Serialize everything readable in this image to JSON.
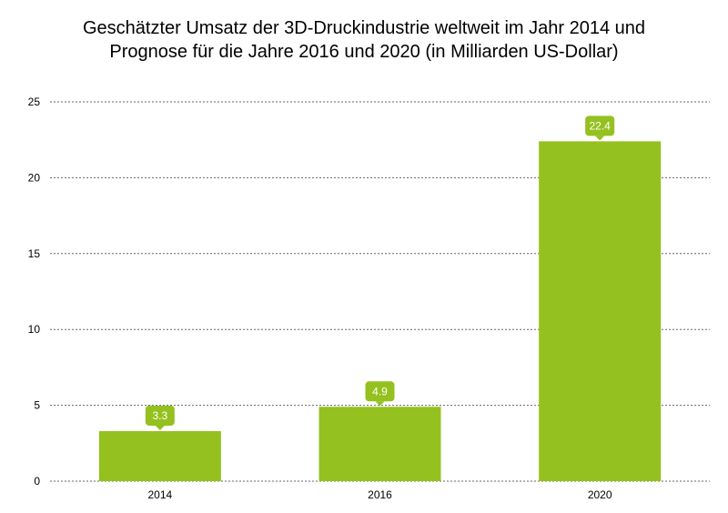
{
  "chart_data": {
    "type": "bar",
    "title_line1": "Geschätzter Umsatz der 3D-Druckindustrie weltweit im Jahr 2014 und",
    "title_line2": "Prognose für die Jahre 2016 und 2020 (in Milliarden US-Dollar)",
    "categories": [
      "2014",
      "2016",
      "2020"
    ],
    "values": [
      3.3,
      4.9,
      22.4
    ],
    "value_labels": [
      "3.3",
      "4.9",
      "22.4"
    ],
    "ylim": [
      0,
      25
    ],
    "yticks": [
      0,
      5,
      10,
      15,
      20,
      25
    ],
    "grid": true,
    "bar_color": "#94c11f"
  }
}
